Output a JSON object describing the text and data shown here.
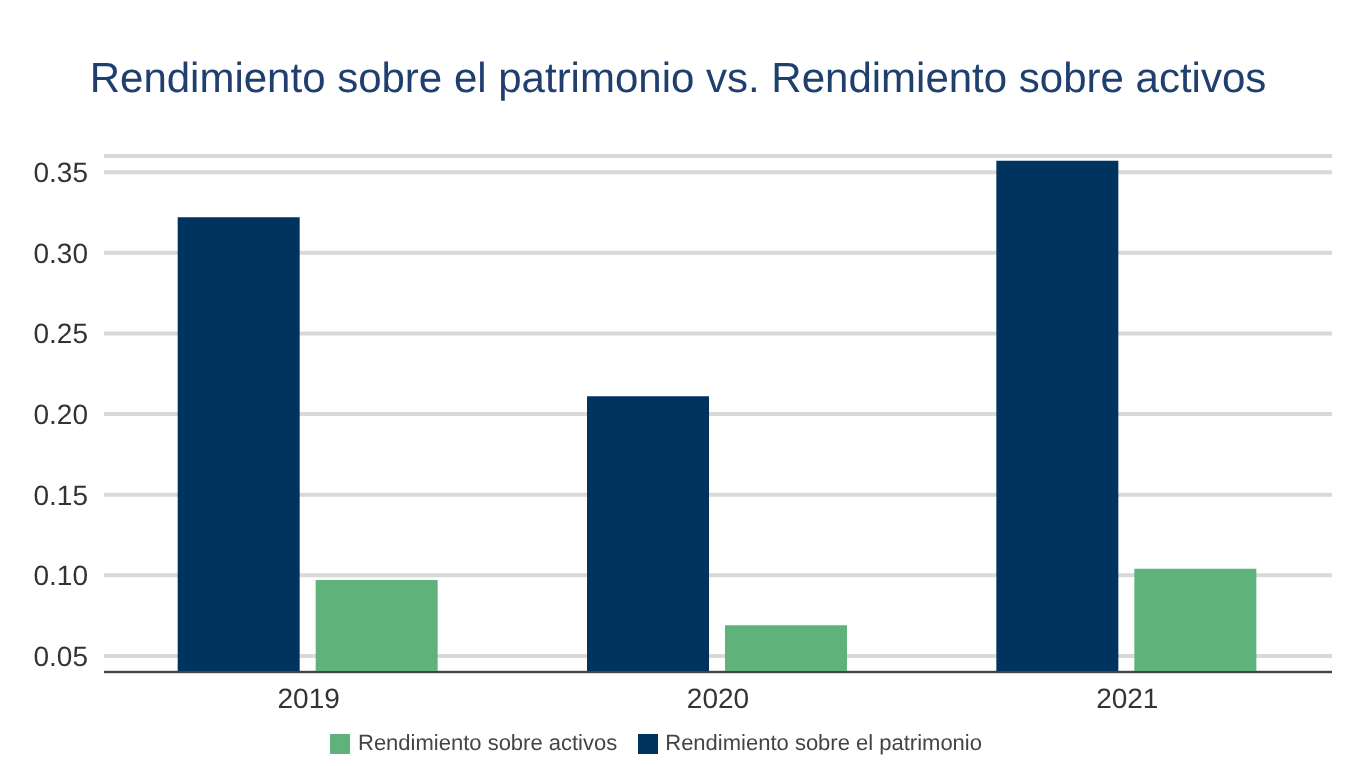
{
  "chart_data": {
    "type": "bar",
    "title": "Rendimiento sobre el patrimonio vs. Rendimiento sobre activos",
    "categories": [
      "2019",
      "2020",
      "2021"
    ],
    "series": [
      {
        "name": "Rendimiento sobre el patrimonio",
        "color": "#00335e",
        "values": [
          0.322,
          0.211,
          0.357
        ]
      },
      {
        "name": "Rendimiento sobre activos",
        "color": "#5fb37a",
        "values": [
          0.097,
          0.069,
          0.104
        ]
      }
    ],
    "ylim": [
      0.04,
      0.36
    ],
    "yticks": [
      {
        "value": 0.05,
        "label": "0.05"
      },
      {
        "value": 0.1,
        "label": "0.10"
      },
      {
        "value": 0.15,
        "label": "0.15"
      },
      {
        "value": 0.2,
        "label": "0.20"
      },
      {
        "value": 0.25,
        "label": "0.25"
      },
      {
        "value": 0.3,
        "label": "0.30"
      },
      {
        "value": 0.35,
        "label": "0.35"
      }
    ],
    "grid": "y",
    "legend": "bottom"
  }
}
